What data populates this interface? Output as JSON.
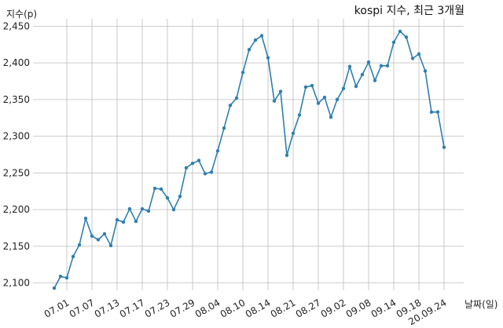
{
  "chart_data": {
    "type": "line",
    "title": "kospi 지수, 최근 3개월",
    "ylabel": "지수(p)",
    "xlabel": "날짜(일)",
    "ylim": [
      2090,
      2460
    ],
    "yticks": [
      2100,
      2150,
      2200,
      2250,
      2300,
      2350,
      2400,
      2450
    ],
    "ytick_labels": [
      "2,100",
      "2,150",
      "2,200",
      "2,250",
      "2,300",
      "2,350",
      "2,400",
      "2,450"
    ],
    "xtick_labels": [
      "07.01",
      "07.07",
      "07.13",
      "07.17",
      "07.23",
      "07.29",
      "08.04",
      "08.10",
      "08.14",
      "08.21",
      "08.27",
      "09.02",
      "09.08",
      "09.14",
      "09.18",
      "20.09.24"
    ],
    "xtick_indices": [
      2,
      6,
      10,
      14,
      18,
      22,
      26,
      30,
      34,
      38,
      42,
      46,
      50,
      54,
      58,
      62
    ],
    "grid": true,
    "series": [
      {
        "color": "#2f7fb0",
        "values": [
          2093,
          2109,
          2107,
          2136,
          2152,
          2188,
          2164,
          2159,
          2167,
          2151,
          2186,
          2183,
          2201,
          2184,
          2201,
          2198,
          2229,
          2228,
          2216,
          2200,
          2218,
          2257,
          2263,
          2267,
          2249,
          2251,
          2280,
          2311,
          2342,
          2352,
          2387,
          2418,
          2431,
          2437,
          2407,
          2348,
          2361,
          2274,
          2304,
          2329,
          2367,
          2369,
          2345,
          2353,
          2326,
          2350,
          2365,
          2395,
          2368,
          2384,
          2401,
          2376,
          2396,
          2396,
          2428,
          2443,
          2435,
          2406,
          2412,
          2389,
          2333,
          2333,
          2285
        ]
      }
    ]
  }
}
